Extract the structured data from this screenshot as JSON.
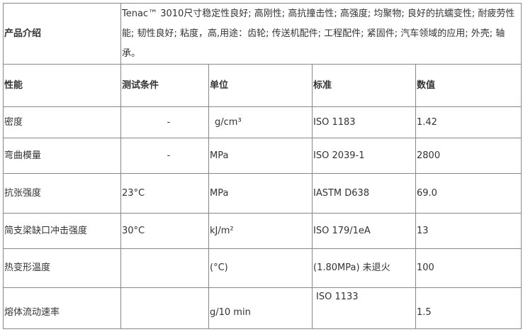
{
  "intro": {
    "label": "产品介绍",
    "text": "Tenac™ 3010尺寸稳定性良好; 高刚性; 高抗撞击性; 高强度; 均聚物; 良好的抗蠕变性; 耐疲劳性能; 韧性良好; 粘度，高,用途：齿轮; 传送机配件; 工程配件; 紧固件; 汽车领域的应用; 外壳; 轴承。"
  },
  "headers": [
    "性能",
    "测试条件",
    "单位",
    "标准",
    "数值"
  ],
  "rows": [
    [
      "密度",
      "-",
      "g/cm³",
      "ISO 1183",
      "1.42"
    ],
    [
      "弯曲模量",
      "-",
      "MPa",
      "ISO 2039-1",
      "2800"
    ],
    [
      "抗张强度",
      "23°C",
      "MPa",
      "IASTM D638",
      "69.0"
    ],
    [
      "简支梁缺口冲击强度",
      "30°C",
      "kJ/m²",
      "ISO 179/1eA",
      "13"
    ],
    [
      "热变形温度",
      "",
      "(°C)",
      "(1.80MPa) 未退火",
      "100"
    ],
    [
      "熔体流动速率",
      "",
      "g/10 min",
      "ISO 1133",
      "1.5"
    ]
  ]
}
